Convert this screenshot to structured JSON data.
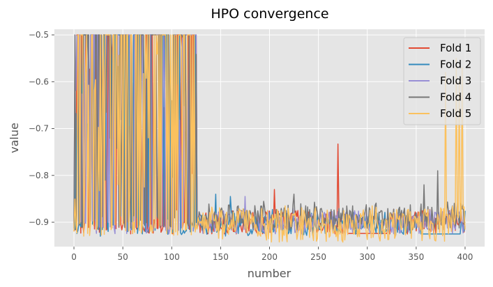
{
  "chart_data": {
    "type": "line",
    "title": "HPO convergence",
    "xlabel": "number",
    "ylabel": "value",
    "xlim": [
      -20,
      420
    ],
    "ylim": [
      -0.952,
      -0.488
    ],
    "xticks": [
      0,
      50,
      100,
      150,
      200,
      250,
      300,
      350,
      400
    ],
    "yticks": [
      -0.9,
      -0.8,
      -0.7,
      -0.6,
      -0.5
    ],
    "xtick_labels": [
      "0",
      "50",
      "100",
      "150",
      "200",
      "250",
      "300",
      "350",
      "400"
    ],
    "ytick_labels": [
      "−0.9",
      "−0.8",
      "−0.7",
      "−0.6",
      "−0.5"
    ],
    "grid": true,
    "legend_position": "top-right",
    "n_trials": 400,
    "series": [
      {
        "name": "Fold 1",
        "color": "#E24A33",
        "low_phase_end": 125,
        "base": -0.9,
        "min": -0.93,
        "max": -0.88,
        "plateau": [
          280,
          320,
          -0.924
        ],
        "spikes": [
          [
            205,
            -0.83
          ],
          [
            270,
            -0.733
          ]
        ],
        "high_prob": 0.18,
        "dense_prob": 0.05
      },
      {
        "name": "Fold 2",
        "color": "#348ABD",
        "low_phase_end": 125,
        "base": -0.905,
        "min": -0.93,
        "max": -0.88,
        "plateau": [
          355,
          395,
          -0.925
        ],
        "spikes": [
          [
            145,
            -0.84
          ],
          [
            160,
            -0.845
          ]
        ],
        "high_prob": 0.22,
        "dense_prob": 0.04
      },
      {
        "name": "Fold 3",
        "color": "#988ED5",
        "low_phase_end": 125,
        "base": -0.9,
        "min": -0.93,
        "max": -0.88,
        "plateau": null,
        "spikes": [
          [
            175,
            -0.845
          ],
          [
            392,
            -0.86
          ]
        ],
        "high_prob": 0.25,
        "dense_prob": 0.05
      },
      {
        "name": "Fold 4",
        "color": "#777777",
        "low_phase_end": 125,
        "base": -0.89,
        "min": -0.92,
        "max": -0.865,
        "plateau": null,
        "spikes": [
          [
            225,
            -0.84
          ],
          [
            358,
            -0.82
          ],
          [
            372,
            -0.79
          ],
          [
            396,
            -0.86
          ]
        ],
        "high_prob": 0.35,
        "dense_prob": 0.07
      },
      {
        "name": "Fold 5",
        "color": "#FBC15E",
        "low_phase_end": 125,
        "base": -0.905,
        "min": -0.95,
        "max": -0.875,
        "plateau": null,
        "spikes": [
          [
            380,
            -0.58
          ],
          [
            388,
            -0.88
          ],
          [
            391,
            -0.55
          ],
          [
            394,
            -0.6
          ],
          [
            397,
            -0.57
          ]
        ],
        "high_prob": 0.33,
        "dense_prob": 0.12
      }
    ]
  }
}
